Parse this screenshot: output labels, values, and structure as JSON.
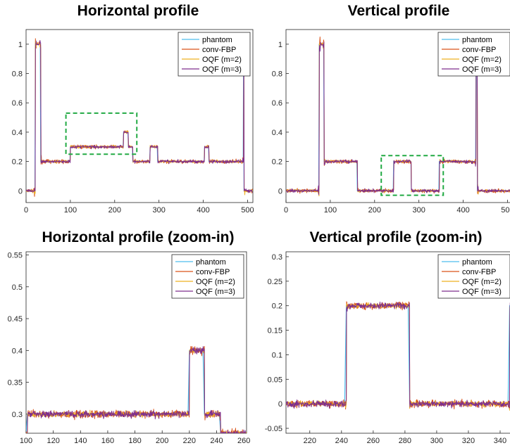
{
  "colors": {
    "phantom": "#4DBEEE",
    "conv-FBP": "#D95319",
    "OQF (m=2)": "#EDB120",
    "OQF (m=3)": "#7E2F8E",
    "zoom_box": "#22AA44",
    "axes": "#262626"
  },
  "chart_data": [
    {
      "type": "line",
      "title": "Horizontal profile",
      "xlabel": "",
      "ylabel": "",
      "xlim": [
        0,
        512
      ],
      "ylim": [
        -0.08,
        1.1
      ],
      "xticks": [
        "0",
        "100",
        "200",
        "300",
        "400",
        "500"
      ],
      "yticks": [
        "0",
        "0.2",
        "0.4",
        "0.6",
        "0.8",
        "1"
      ],
      "grid": false,
      "legend_position": "top-right",
      "series": [
        {
          "name": "phantom",
          "points": [
            [
              0,
              0
            ],
            [
              20,
              0
            ],
            [
              21,
              1
            ],
            [
              32,
              1
            ],
            [
              33,
              0.2
            ],
            [
              99,
              0.2
            ],
            [
              100,
              0.3
            ],
            [
              219,
              0.3
            ],
            [
              220,
              0.4
            ],
            [
              230,
              0.4
            ],
            [
              231,
              0.3
            ],
            [
              240,
              0.3
            ],
            [
              241,
              0.2
            ],
            [
              279,
              0.2
            ],
            [
              280,
              0.3
            ],
            [
              296,
              0.3
            ],
            [
              297,
              0.2
            ],
            [
              402,
              0.2
            ],
            [
              403,
              0.3
            ],
            [
              412,
              0.3
            ],
            [
              413,
              0.2
            ],
            [
              490,
              0.2
            ],
            [
              491,
              1
            ],
            [
              492,
              0
            ],
            [
              512,
              0
            ]
          ]
        },
        {
          "name": "conv-FBP",
          "noise": 0.012
        },
        {
          "name": "OQF (m=2)",
          "noise": 0.009
        },
        {
          "name": "OQF (m=3)",
          "noise": 0.01
        }
      ],
      "annotation": {
        "type": "zoom-box",
        "x": [
          90,
          250
        ],
        "y": [
          0.25,
          0.53
        ]
      }
    },
    {
      "type": "line",
      "title": "Vertical profile",
      "xlabel": "",
      "ylabel": "",
      "xlim": [
        0,
        512
      ],
      "ylim": [
        -0.08,
        1.1
      ],
      "xticks": [
        "0",
        "100",
        "200",
        "300",
        "400",
        "500"
      ],
      "yticks": [
        "0",
        "0.2",
        "0.4",
        "0.6",
        "0.8",
        "1"
      ],
      "grid": false,
      "legend_position": "top-right",
      "series": [
        {
          "name": "phantom",
          "points": [
            [
              0,
              0
            ],
            [
              74,
              0
            ],
            [
              75,
              1
            ],
            [
              85,
              1
            ],
            [
              86,
              0.2
            ],
            [
              160,
              0.2
            ],
            [
              161,
              0
            ],
            [
              242,
              0
            ],
            [
              243,
              0.2
            ],
            [
              282,
              0.2
            ],
            [
              283,
              0
            ],
            [
              345,
              0
            ],
            [
              346,
              0.2
            ],
            [
              428,
              0.2
            ],
            [
              429,
              1
            ],
            [
              431,
              1
            ],
            [
              432,
              0
            ],
            [
              512,
              0
            ]
          ]
        },
        {
          "name": "conv-FBP",
          "noise": 0.012
        },
        {
          "name": "OQF (m=2)",
          "noise": 0.009
        },
        {
          "name": "OQF (m=3)",
          "noise": 0.01
        }
      ],
      "annotation": {
        "type": "zoom-box",
        "x": [
          215,
          355
        ],
        "y": [
          -0.03,
          0.24
        ]
      }
    },
    {
      "type": "line",
      "title": "Horizontal profile (zoom-in)",
      "xlabel": "",
      "ylabel": "",
      "xlim": [
        100,
        262
      ],
      "ylim": [
        0.27,
        0.555
      ],
      "xticks": [
        "100",
        "120",
        "140",
        "160",
        "180",
        "200",
        "220",
        "240",
        "260"
      ],
      "yticks": [
        "0.3",
        "0.35",
        "0.4",
        "0.45",
        "0.5",
        "0.55"
      ],
      "grid": false,
      "legend_position": "top-right",
      "series": [
        {
          "name": "phantom",
          "points": [
            [
              100,
              0.27
            ],
            [
              101,
              0.3
            ],
            [
              219,
              0.3
            ],
            [
              220,
              0.4
            ],
            [
              230,
              0.4
            ],
            [
              231,
              0.3
            ],
            [
              242,
              0.3
            ],
            [
              243,
              0.27
            ]
          ]
        },
        {
          "name": "conv-FBP",
          "noise": 0.006
        },
        {
          "name": "OQF (m=2)",
          "noise": 0.004
        },
        {
          "name": "OQF (m=3)",
          "noise": 0.005
        }
      ]
    },
    {
      "type": "line",
      "title": "Vertical profile (zoom-in)",
      "xlabel": "",
      "ylabel": "",
      "xlim": [
        205,
        348
      ],
      "ylim": [
        -0.06,
        0.31
      ],
      "xticks": [
        "220",
        "240",
        "260",
        "280",
        "300",
        "320",
        "340"
      ],
      "yticks": [
        "-0.05",
        "0",
        "0.05",
        "0.1",
        "0.15",
        "0.2",
        "0.25",
        "0.3"
      ],
      "grid": false,
      "legend_position": "top-right",
      "series": [
        {
          "name": "phantom",
          "points": [
            [
              205,
              0
            ],
            [
              242,
              0
            ],
            [
              243,
              0.2
            ],
            [
              282,
              0.2
            ],
            [
              283,
              0
            ],
            [
              345,
              0
            ],
            [
              346,
              0.2
            ],
            [
              348,
              0.2
            ]
          ]
        },
        {
          "name": "conv-FBP",
          "noise": 0.007
        },
        {
          "name": "OQF (m=2)",
          "noise": 0.005
        },
        {
          "name": "OQF (m=3)",
          "noise": 0.006
        }
      ]
    }
  ]
}
